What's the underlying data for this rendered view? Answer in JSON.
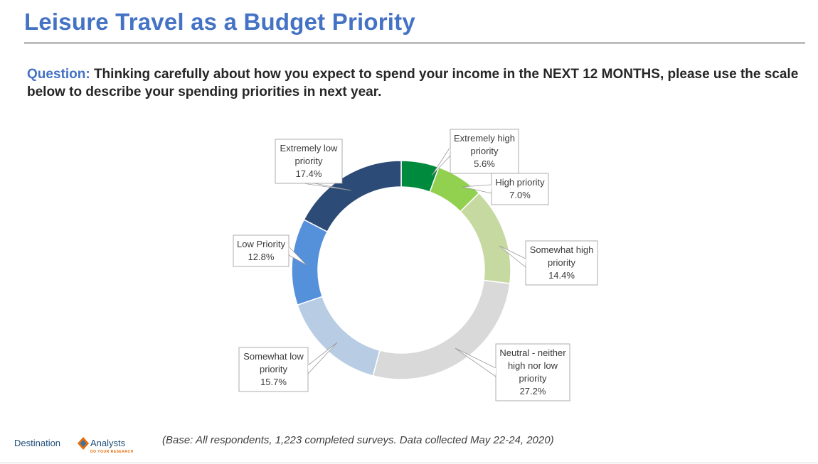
{
  "title": "Leisure Travel as a Budget Priority",
  "question": {
    "label": "Question:",
    "text": "Thinking carefully about how you expect to spend your income in the NEXT 12 MONTHS, please use the scale below to describe your spending priorities in next year."
  },
  "chart_data": {
    "type": "pie",
    "variant": "donut",
    "categories": [
      "Extremely high priority",
      "High priority",
      "Somewhat high priority",
      "Neutral - neither high nor low priority",
      "Somewhat low priority",
      "Low Priority",
      "Extremely low priority"
    ],
    "values": [
      5.6,
      7.0,
      14.4,
      27.2,
      15.7,
      12.8,
      17.4
    ],
    "value_labels": [
      "5.6%",
      "7.0%",
      "14.4%",
      "27.2%",
      "15.7%",
      "12.8%",
      "17.4%"
    ],
    "label_lines": [
      [
        "Extremely high",
        "priority",
        "5.6%"
      ],
      [
        "High priority",
        "7.0%"
      ],
      [
        "Somewhat high",
        "priority",
        "14.4%"
      ],
      [
        "Neutral - neither",
        "high nor low",
        "priority",
        "27.2%"
      ],
      [
        "Somewhat low",
        "priority",
        "15.7%"
      ],
      [
        "Low Priority",
        "12.8%"
      ],
      [
        "Extremely low",
        "priority",
        "17.4%"
      ]
    ],
    "colors": [
      "#008a3e",
      "#92d050",
      "#c5d9a0",
      "#d9d9d9",
      "#b8cce4",
      "#5590da",
      "#2c4b76"
    ],
    "legend": "none"
  },
  "footer": {
    "note": "(Base: All respondents, 1,223 completed surveys. Data collected May 22-24, 2020)"
  },
  "logo": {
    "left_word": "Destination",
    "right_word": "Analysts",
    "tagline": "DO YOUR RESEARCH",
    "colors": [
      "#1f4e79",
      "#e46c0a",
      "#2e75b6"
    ]
  }
}
